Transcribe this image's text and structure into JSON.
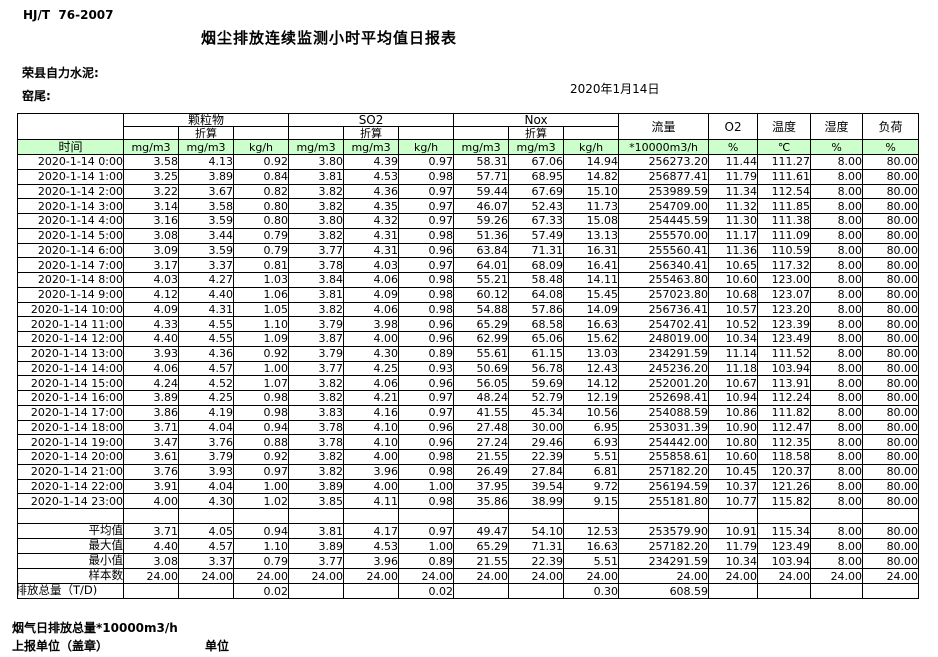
{
  "header": {
    "standard_code": "HJ/T  76-2007",
    "title": "烟尘排放连续监测小时平均值日报表",
    "company": "荣县自力水泥:",
    "site": "窑尾:",
    "date": "2020年1月14日"
  },
  "table": {
    "time_header": "时间",
    "groups": {
      "pm": "颗粒物",
      "so2": "SO2",
      "nox": "Nox",
      "flow": "流量",
      "o2": "O2",
      "temp": "温度",
      "humidity": "湿度",
      "load": "负荷"
    },
    "converted_label": "折算",
    "units": {
      "mg": "mg/m3",
      "kgh": "kg/h",
      "flow": "*10000m3/h",
      "percent": "%",
      "celsius": "℃"
    },
    "rows": [
      [
        "2020-1-14 0:00",
        "3.58",
        "4.13",
        "0.92",
        "3.80",
        "4.39",
        "0.97",
        "58.31",
        "67.06",
        "14.94",
        "256273.20",
        "11.44",
        "111.27",
        "8.00",
        "80.00"
      ],
      [
        "2020-1-14 1:00",
        "3.25",
        "3.89",
        "0.84",
        "3.81",
        "4.53",
        "0.98",
        "57.71",
        "68.95",
        "14.82",
        "256877.41",
        "11.79",
        "111.61",
        "8.00",
        "80.00"
      ],
      [
        "2020-1-14 2:00",
        "3.22",
        "3.67",
        "0.82",
        "3.82",
        "4.36",
        "0.97",
        "59.44",
        "67.69",
        "15.10",
        "253989.59",
        "11.34",
        "112.54",
        "8.00",
        "80.00"
      ],
      [
        "2020-1-14 3:00",
        "3.14",
        "3.58",
        "0.80",
        "3.82",
        "4.35",
        "0.97",
        "46.07",
        "52.43",
        "11.73",
        "254709.00",
        "11.32",
        "111.85",
        "8.00",
        "80.00"
      ],
      [
        "2020-1-14 4:00",
        "3.16",
        "3.59",
        "0.80",
        "3.80",
        "4.32",
        "0.97",
        "59.26",
        "67.33",
        "15.08",
        "254445.59",
        "11.30",
        "111.38",
        "8.00",
        "80.00"
      ],
      [
        "2020-1-14 5:00",
        "3.08",
        "3.44",
        "0.79",
        "3.82",
        "4.31",
        "0.98",
        "51.36",
        "57.49",
        "13.13",
        "255570.00",
        "11.17",
        "111.09",
        "8.00",
        "80.00"
      ],
      [
        "2020-1-14 6:00",
        "3.09",
        "3.59",
        "0.79",
        "3.77",
        "4.31",
        "0.96",
        "63.84",
        "71.31",
        "16.31",
        "255560.41",
        "11.36",
        "110.59",
        "8.00",
        "80.00"
      ],
      [
        "2020-1-14 7:00",
        "3.17",
        "3.37",
        "0.81",
        "3.78",
        "4.03",
        "0.97",
        "64.01",
        "68.09",
        "16.41",
        "256340.41",
        "10.65",
        "117.32",
        "8.00",
        "80.00"
      ],
      [
        "2020-1-14 8:00",
        "4.03",
        "4.27",
        "1.03",
        "3.84",
        "4.06",
        "0.98",
        "55.21",
        "58.48",
        "14.11",
        "255463.80",
        "10.60",
        "123.00",
        "8.00",
        "80.00"
      ],
      [
        "2020-1-14 9:00",
        "4.12",
        "4.40",
        "1.06",
        "3.81",
        "4.09",
        "0.98",
        "60.12",
        "64.08",
        "15.45",
        "257023.80",
        "10.68",
        "123.07",
        "8.00",
        "80.00"
      ],
      [
        "2020-1-14 10:00",
        "4.09",
        "4.31",
        "1.05",
        "3.82",
        "4.06",
        "0.98",
        "54.88",
        "57.86",
        "14.09",
        "256736.41",
        "10.57",
        "123.20",
        "8.00",
        "80.00"
      ],
      [
        "2020-1-14 11:00",
        "4.33",
        "4.55",
        "1.10",
        "3.79",
        "3.98",
        "0.96",
        "65.29",
        "68.58",
        "16.63",
        "254702.41",
        "10.52",
        "123.39",
        "8.00",
        "80.00"
      ],
      [
        "2020-1-14 12:00",
        "4.40",
        "4.55",
        "1.09",
        "3.87",
        "4.00",
        "0.96",
        "62.99",
        "65.06",
        "15.62",
        "248019.00",
        "10.34",
        "123.49",
        "8.00",
        "80.00"
      ],
      [
        "2020-1-14 13:00",
        "3.93",
        "4.36",
        "0.92",
        "3.79",
        "4.30",
        "0.89",
        "55.61",
        "61.15",
        "13.03",
        "234291.59",
        "11.14",
        "111.52",
        "8.00",
        "80.00"
      ],
      [
        "2020-1-14 14:00",
        "4.06",
        "4.57",
        "1.00",
        "3.77",
        "4.25",
        "0.93",
        "50.69",
        "56.78",
        "12.43",
        "245236.20",
        "11.18",
        "103.94",
        "8.00",
        "80.00"
      ],
      [
        "2020-1-14 15:00",
        "4.24",
        "4.52",
        "1.07",
        "3.82",
        "4.06",
        "0.96",
        "56.05",
        "59.69",
        "14.12",
        "252001.20",
        "10.67",
        "113.91",
        "8.00",
        "80.00"
      ],
      [
        "2020-1-14 16:00",
        "3.89",
        "4.25",
        "0.98",
        "3.82",
        "4.21",
        "0.97",
        "48.24",
        "52.79",
        "12.19",
        "252698.41",
        "10.94",
        "112.24",
        "8.00",
        "80.00"
      ],
      [
        "2020-1-14 17:00",
        "3.86",
        "4.19",
        "0.98",
        "3.83",
        "4.16",
        "0.97",
        "41.55",
        "45.34",
        "10.56",
        "254088.59",
        "10.86",
        "111.82",
        "8.00",
        "80.00"
      ],
      [
        "2020-1-14 18:00",
        "3.71",
        "4.04",
        "0.94",
        "3.78",
        "4.10",
        "0.96",
        "27.48",
        "30.00",
        "6.95",
        "253031.39",
        "10.90",
        "112.47",
        "8.00",
        "80.00"
      ],
      [
        "2020-1-14 19:00",
        "3.47",
        "3.76",
        "0.88",
        "3.78",
        "4.10",
        "0.96",
        "27.24",
        "29.46",
        "6.93",
        "254442.00",
        "10.80",
        "112.35",
        "8.00",
        "80.00"
      ],
      [
        "2020-1-14 20:00",
        "3.61",
        "3.79",
        "0.92",
        "3.82",
        "4.00",
        "0.98",
        "21.55",
        "22.39",
        "5.51",
        "255858.61",
        "10.60",
        "118.58",
        "8.00",
        "80.00"
      ],
      [
        "2020-1-14 21:00",
        "3.76",
        "3.93",
        "0.97",
        "3.82",
        "3.96",
        "0.98",
        "26.49",
        "27.84",
        "6.81",
        "257182.20",
        "10.45",
        "120.37",
        "8.00",
        "80.00"
      ],
      [
        "2020-1-14 22:00",
        "3.91",
        "4.04",
        "1.00",
        "3.89",
        "4.00",
        "1.00",
        "37.95",
        "39.54",
        "9.72",
        "256194.59",
        "10.37",
        "121.26",
        "8.00",
        "80.00"
      ],
      [
        "2020-1-14 23:00",
        "4.00",
        "4.30",
        "1.02",
        "3.85",
        "4.11",
        "0.98",
        "35.86",
        "38.99",
        "9.15",
        "255181.80",
        "10.77",
        "115.82",
        "8.00",
        "80.00"
      ]
    ],
    "summary": [
      {
        "label": "平均值",
        "values": [
          "3.71",
          "4.05",
          "0.94",
          "3.81",
          "4.17",
          "0.97",
          "49.47",
          "54.10",
          "12.53",
          "253579.90",
          "10.91",
          "115.34",
          "8.00",
          "80.00"
        ]
      },
      {
        "label": "最大值",
        "values": [
          "4.40",
          "4.57",
          "1.10",
          "3.89",
          "4.53",
          "1.00",
          "65.29",
          "71.31",
          "16.63",
          "257182.20",
          "11.79",
          "123.49",
          "8.00",
          "80.00"
        ]
      },
      {
        "label": "最小值",
        "values": [
          "3.08",
          "3.37",
          "0.79",
          "3.77",
          "3.96",
          "0.89",
          "21.55",
          "22.39",
          "5.51",
          "234291.59",
          "10.34",
          "103.94",
          "8.00",
          "80.00"
        ]
      },
      {
        "label": "样本数",
        "values": [
          "24.00",
          "24.00",
          "24.00",
          "24.00",
          "24.00",
          "24.00",
          "24.00",
          "24.00",
          "24.00",
          "24.00",
          "24.00",
          "24.00",
          "24.00",
          "24.00"
        ]
      },
      {
        "label": "日排放总量（T/D)",
        "total": true,
        "values": [
          "",
          "",
          "0.02",
          "",
          "",
          "0.02",
          "",
          "",
          "0.30",
          "608.59",
          "",
          "",
          "",
          ""
        ]
      }
    ]
  },
  "footer": {
    "line1": "烟气日排放总量*10000m3/h",
    "line2_left": "上报单位（盖章）",
    "line2_right": "单位"
  },
  "colors": {
    "header_green": "#ccffcc",
    "border": "#000000"
  }
}
